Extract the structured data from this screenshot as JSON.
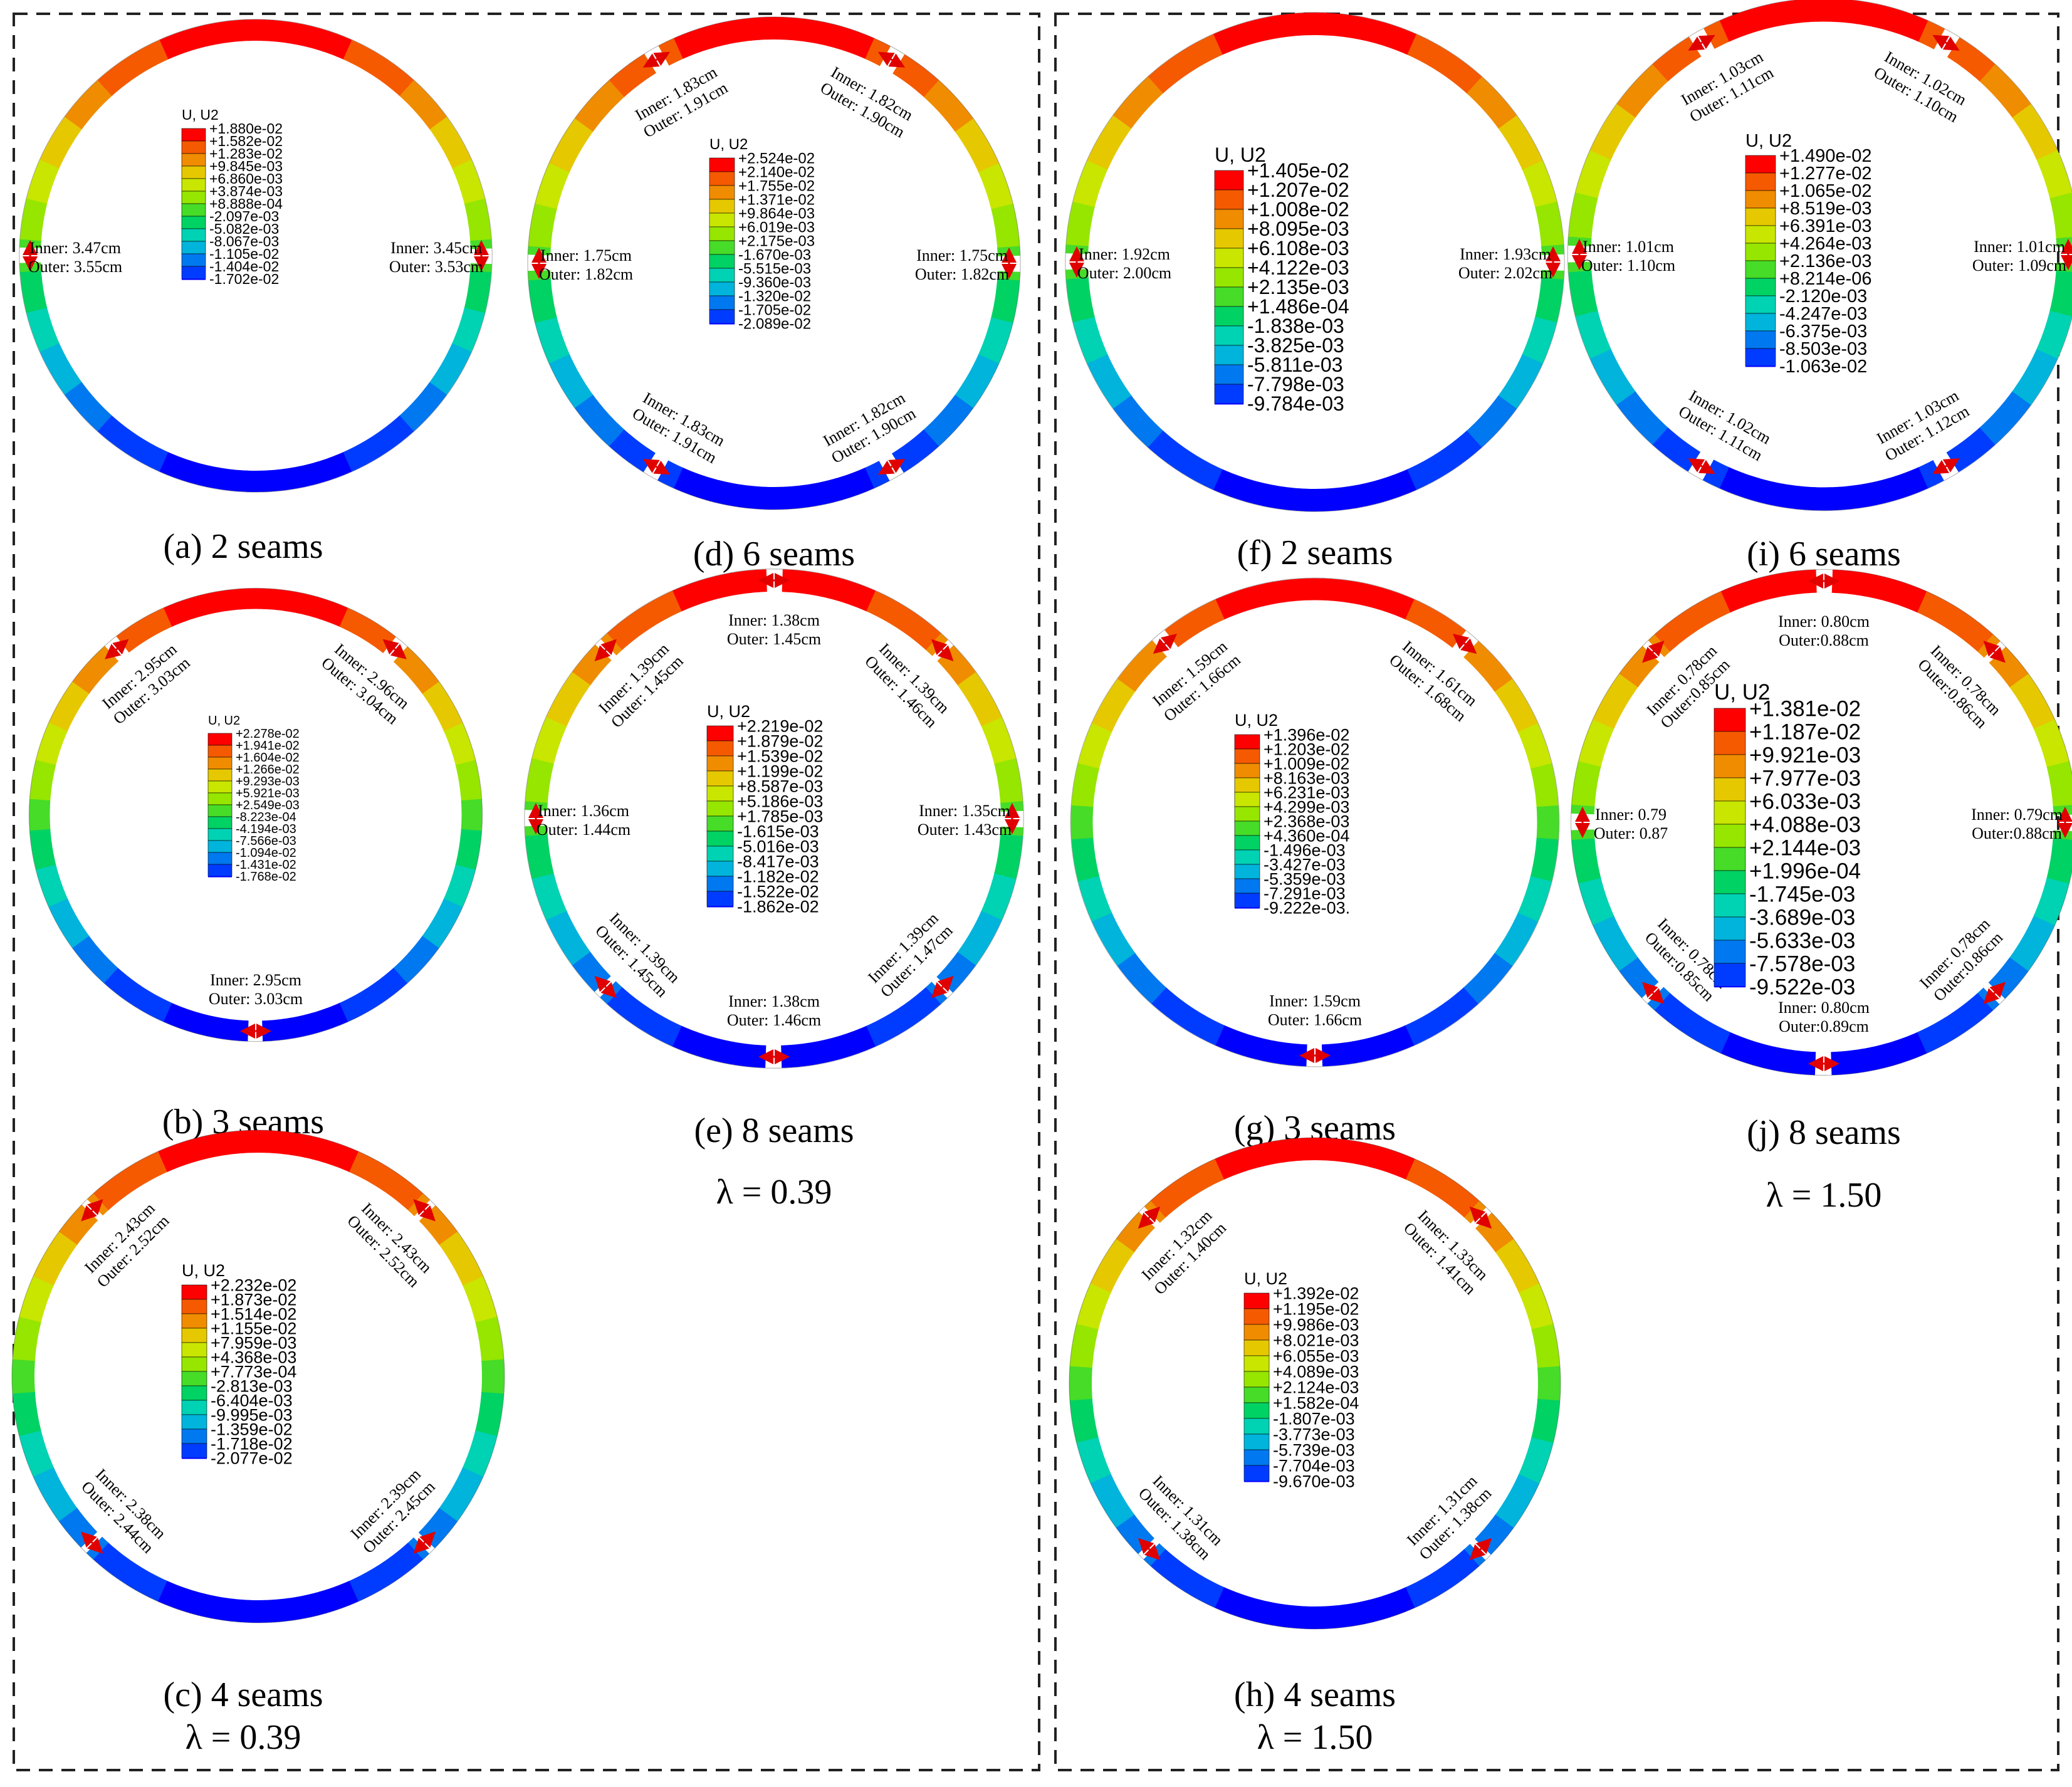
{
  "legend_title": "U, U2",
  "colors": {
    "scale": [
      "#ff0000",
      "#f55a00",
      "#f08c00",
      "#e6c800",
      "#c8e600",
      "#96e600",
      "#46dc28",
      "#00d264",
      "#00d2b4",
      "#00b4dc",
      "#0078f0",
      "#003cff",
      "#0000ff"
    ],
    "seam_arrow": "#e00000",
    "panel_border": "#222222"
  },
  "groups": [
    {
      "lambda_label": "λ = 0.39"
    },
    {
      "lambda_label": "λ = 1.50"
    }
  ],
  "panels": [
    {
      "caption": "(a) 2 seams",
      "legend": [
        "+1.880e-02",
        "+1.582e-02",
        "+1.283e-02",
        "+9.845e-03",
        "+6.860e-03",
        "+3.874e-03",
        "+8.888e-04",
        "-2.097e-03",
        "-5.082e-03",
        "-8.067e-03",
        "-1.105e-02",
        "-1.404e-02",
        "-1.702e-02"
      ],
      "seams": [
        {
          "inner": "Inner: 3.47cm",
          "outer": "Outer: 3.55cm"
        },
        {
          "inner": "Inner: 3.45cm",
          "outer": "Outer: 3.53cm"
        }
      ]
    },
    {
      "caption": "(b) 3 seams",
      "legend": [
        "+2.278e-02",
        "+1.941e-02",
        "+1.604e-02",
        "+1.266e-02",
        "+9.293e-03",
        "+5.921e-03",
        "+2.549e-03",
        "-8.223e-04",
        "-4.194e-03",
        "-7.566e-03",
        "-1.094e-02",
        "-1.431e-02",
        "-1.768e-02"
      ],
      "seams": [
        {
          "inner": "Inner: 2.95cm",
          "outer": "Outer: 3.03cm"
        },
        {
          "inner": "Inner: 2.96cm",
          "outer": "Outer: 3.04cm"
        },
        {
          "inner": "Inner: 2.95cm",
          "outer": "Outer: 3.03cm"
        }
      ]
    },
    {
      "caption": "(c) 4 seams",
      "legend": [
        "+2.232e-02",
        "+1.873e-02",
        "+1.514e-02",
        "+1.155e-02",
        "+7.959e-03",
        "+4.368e-03",
        "+7.773e-04",
        "-2.813e-03",
        "-6.404e-03",
        "-9.995e-03",
        "-1.359e-02",
        "-1.718e-02",
        "-2.077e-02"
      ],
      "seams": [
        {
          "inner": "Inner: 2.43cm",
          "outer": "Outer: 2.52cm"
        },
        {
          "inner": "Inner: 2.43cm",
          "outer": "Outer: 2.52cm"
        },
        {
          "inner": "Inner: 2.38cm",
          "outer": "Outer: 2.44cm"
        },
        {
          "inner": "Inner: 2.39cm",
          "outer": "Outer: 2.45cm"
        }
      ]
    },
    {
      "caption": "(d) 6 seams",
      "legend": [
        "+2.524e-02",
        "+2.140e-02",
        "+1.755e-02",
        "+1.371e-02",
        "+9.864e-03",
        "+6.019e-03",
        "+2.175e-03",
        "-1.670e-03",
        "-5.515e-03",
        "-9.360e-03",
        "-1.320e-02",
        "-1.705e-02",
        "-2.089e-02"
      ],
      "seams": [
        {
          "inner": "Inner: 1.83cm",
          "outer": "Outer: 1.91cm"
        },
        {
          "inner": "Inner: 1.82cm",
          "outer": "Outer: 1.90cm"
        },
        {
          "inner": "Inner: 1.75cm",
          "outer": "Outer: 1.82cm"
        },
        {
          "inner": "Inner: 1.75cm",
          "outer": "Outer: 1.82cm"
        },
        {
          "inner": "Inner: 1.83cm",
          "outer": "Outer: 1.91cm"
        },
        {
          "inner": "Inner: 1.82cm",
          "outer": "Outer: 1.90cm"
        }
      ]
    },
    {
      "caption": "(e) 8 seams",
      "legend": [
        "+2.219e-02",
        "+1.879e-02",
        "+1.539e-02",
        "+1.199e-02",
        "+8.587e-03",
        "+5.186e-03",
        "+1.785e-03",
        "-1.615e-03",
        "-5.016e-03",
        "-8.417e-03",
        "-1.182e-02",
        "-1.522e-02",
        "-1.862e-02"
      ],
      "seams": [
        {
          "inner": "Inner: 1.38cm",
          "outer": "Outer: 1.45cm"
        },
        {
          "inner": "Inner: 1.39cm",
          "outer": "Outer: 1.45cm"
        },
        {
          "inner": "Inner: 1.39cm",
          "outer": "Outer: 1.46cm"
        },
        {
          "inner": "Inner: 1.36cm",
          "outer": "Outer: 1.44cm"
        },
        {
          "inner": "Inner: 1.35cm",
          "outer": "Outer: 1.43cm"
        },
        {
          "inner": "Inner: 1.39cm",
          "outer": "Outer: 1.45cm"
        },
        {
          "inner": "Inner: 1.39cm",
          "outer": "Outer: 1.47cm"
        },
        {
          "inner": "Inner: 1.38cm",
          "outer": "Outer: 1.46cm"
        }
      ]
    },
    {
      "caption": "(f) 2 seams",
      "legend": [
        "+1.405e-02",
        "+1.207e-02",
        "+1.008e-02",
        "+8.095e-03",
        "+6.108e-03",
        "+4.122e-03",
        "+2.135e-03",
        "+1.486e-04",
        "-1.838e-03",
        "-3.825e-03",
        "-5.811e-03",
        "-7.798e-03",
        "-9.784e-03"
      ],
      "seams": [
        {
          "inner": "Inner: 1.92cm",
          "outer": "Outer: 2.00cm"
        },
        {
          "inner": "Inner: 1.93cm",
          "outer": "Outer: 2.02cm"
        }
      ]
    },
    {
      "caption": "(g) 3 seams",
      "legend": [
        "+1.396e-02",
        "+1.203e-02",
        "+1.009e-02",
        "+8.163e-03",
        "+6.231e-03",
        "+4.299e-03",
        "+2.368e-03",
        "+4.360e-04",
        "-1.496e-03",
        "-3.427e-03",
        "-5.359e-03",
        "-7.291e-03",
        "-9.222e-03."
      ],
      "seams": [
        {
          "inner": "Inner: 1.59cm",
          "outer": "Outer: 1.66cm"
        },
        {
          "inner": "Inner: 1.61cm",
          "outer": "Outer: 1.68cm"
        },
        {
          "inner": "Inner: 1.59cm",
          "outer": "Outer: 1.66cm"
        }
      ]
    },
    {
      "caption": "(h) 4 seams",
      "legend": [
        "+1.392e-02",
        "+1.195e-02",
        "+9.986e-03",
        "+8.021e-03",
        "+6.055e-03",
        "+4.089e-03",
        "+2.124e-03",
        "+1.582e-04",
        "-1.807e-03",
        "-3.773e-03",
        "-5.739e-03",
        "-7.704e-03",
        "-9.670e-03"
      ],
      "seams": [
        {
          "inner": "Inner: 1.32cm",
          "outer": "Outer: 1.40cm"
        },
        {
          "inner": "Inner: 1.33cm",
          "outer": "Outer: 1.41cm"
        },
        {
          "inner": "Inner: 1.31cm",
          "outer": "Outer: 1.38cm"
        },
        {
          "inner": "Inner: 1.31cm",
          "outer": "Outer: 1.38cm"
        }
      ]
    },
    {
      "caption": "(i) 6 seams",
      "legend": [
        "+1.490e-02",
        "+1.277e-02",
        "+1.065e-02",
        "+8.519e-03",
        "+6.391e-03",
        "+4.264e-03",
        "+2.136e-03",
        "+8.214e-06",
        "-2.120e-03",
        "-4.247e-03",
        "-6.375e-03",
        "-8.503e-03",
        "-1.063e-02"
      ],
      "seams": [
        {
          "inner": "Inner: 1.03cm",
          "outer": "Outer: 1.11cm"
        },
        {
          "inner": "Inner: 1.02cm",
          "outer": "Outer: 1.10cm"
        },
        {
          "inner": "Inner: 1.01cm",
          "outer": "Outer: 1.10cm"
        },
        {
          "inner": "Inner: 1.01cm",
          "outer": "Outer: 1.09cm"
        },
        {
          "inner": "Inner: 1.02cm",
          "outer": "Outer: 1.11cm"
        },
        {
          "inner": "Inner: 1.03cm",
          "outer": "Outer: 1.12cm"
        }
      ]
    },
    {
      "caption": "(j) 8 seams",
      "legend": [
        "+1.381e-02",
        "+1.187e-02",
        "+9.921e-03",
        "+7.977e-03",
        "+6.033e-03",
        "+4.088e-03",
        "+2.144e-03",
        "+1.996e-04",
        "-1.745e-03",
        "-3.689e-03",
        "-5.633e-03",
        "-7.578e-03",
        "-9.522e-03"
      ],
      "seams": [
        {
          "inner": "Inner: 0.80cm",
          "outer": "Outer:0.88cm"
        },
        {
          "inner": "Inner: 0.78cm",
          "outer": "Outer:0.85cm"
        },
        {
          "inner": "Inner: 0.78cm",
          "outer": "Outer:0.86cm"
        },
        {
          "inner": "Inner: 0.79",
          "outer": "Outer: 0.87"
        },
        {
          "inner": "Inner: 0.79cm",
          "outer": "Outer:0.88cm"
        },
        {
          "inner": "Inner: 0.78cm",
          "outer": "Outer:0.85cm"
        },
        {
          "inner": "Inner: 0.78cm",
          "outer": "Outer:0.86cm"
        },
        {
          "inner": "Inner: 0.80cm",
          "outer": "Outer:0.89cm"
        }
      ]
    }
  ]
}
